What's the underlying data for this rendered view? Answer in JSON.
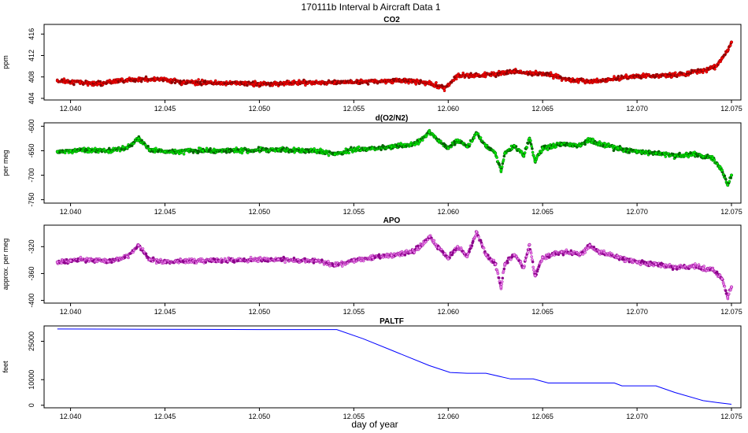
{
  "page_title": "170111b   Interval b Aircraft Data 1",
  "xlabel": "day of year",
  "chart_data": [
    {
      "type": "scatter",
      "title": "CO2",
      "ylabel": "ppm",
      "xlim": [
        12.0386,
        12.0755
      ],
      "ylim": [
        403.7,
        417.8
      ],
      "xticks": [
        "12.040",
        "12.045",
        "12.050",
        "12.055",
        "12.060",
        "12.065",
        "12.070",
        "12.075"
      ],
      "yticks": [
        "404",
        "408",
        "412",
        "416"
      ],
      "color": "#ff0000",
      "edge_color": "#8b0000",
      "series": [
        {
          "x": [
            12.0393,
            12.0405,
            12.0415,
            12.043,
            12.0445,
            12.046,
            12.048,
            12.05,
            12.052,
            12.054,
            12.056,
            12.058,
            12.059,
            12.0598,
            12.0605,
            12.0615,
            12.0625,
            12.0635,
            12.0645,
            12.0655,
            12.0665,
            12.0675,
            12.0685,
            12.0695,
            12.0705,
            12.0715,
            12.0725,
            12.0735,
            12.0742,
            12.0745,
            12.0748,
            12.075
          ],
          "y": [
            407.3,
            407.0,
            406.8,
            407.5,
            407.6,
            407.0,
            406.9,
            406.7,
            406.9,
            407.0,
            407.2,
            407.3,
            406.8,
            405.9,
            408.2,
            408.3,
            408.5,
            409.0,
            408.7,
            408.3,
            407.4,
            407.2,
            407.5,
            408.0,
            408.2,
            408.3,
            408.5,
            409.3,
            410.0,
            411.5,
            413.0,
            414.5
          ]
        }
      ]
    },
    {
      "type": "scatter",
      "title": "d(O2/N2)",
      "ylabel": "per meg",
      "xlim": [
        12.0386,
        12.0755
      ],
      "ylim": [
        -757,
        -593
      ],
      "xticks": [
        "12.040",
        "12.045",
        "12.050",
        "12.055",
        "12.060",
        "12.065",
        "12.070",
        "12.075"
      ],
      "yticks": [
        "-750",
        "-700",
        "-650",
        "-600"
      ],
      "color": "#00ee00",
      "edge_color": "#006400",
      "series": [
        {
          "x": [
            12.0393,
            12.04,
            12.041,
            12.042,
            12.043,
            12.0436,
            12.0442,
            12.045,
            12.047,
            12.049,
            12.051,
            12.053,
            12.054,
            12.055,
            12.056,
            12.057,
            12.058,
            12.0585,
            12.059,
            12.0595,
            12.06,
            12.0605,
            12.061,
            12.0615,
            12.062,
            12.0625,
            12.0628,
            12.063,
            12.0635,
            12.064,
            12.0643,
            12.0646,
            12.065,
            12.066,
            12.067,
            12.0675,
            12.068,
            12.069,
            12.07,
            12.071,
            12.072,
            12.073,
            12.0735,
            12.074,
            12.0745,
            12.0748,
            12.075
          ],
          "y": [
            -652,
            -650,
            -648,
            -651,
            -644,
            -625,
            -648,
            -652,
            -650,
            -649,
            -648,
            -650,
            -657,
            -648,
            -645,
            -642,
            -638,
            -630,
            -612,
            -630,
            -645,
            -628,
            -642,
            -615,
            -640,
            -655,
            -690,
            -655,
            -640,
            -660,
            -625,
            -672,
            -645,
            -637,
            -640,
            -628,
            -637,
            -645,
            -652,
            -655,
            -660,
            -658,
            -662,
            -665,
            -690,
            -720,
            -700
          ]
        }
      ]
    },
    {
      "type": "scatter",
      "title": "APO",
      "ylabel": "approx. per meg",
      "xlim": [
        12.0386,
        12.0755
      ],
      "ylim": [
        -404,
        -288
      ],
      "xticks": [
        "12.040",
        "12.045",
        "12.050",
        "12.055",
        "12.060",
        "12.065",
        "12.070",
        "12.075"
      ],
      "yticks": [
        "-400",
        "-360",
        "-320"
      ],
      "color": "#ee82ee",
      "edge_color": "#8b008b",
      "series": [
        {
          "x": [
            12.0393,
            12.04,
            12.041,
            12.042,
            12.043,
            12.0436,
            12.0442,
            12.045,
            12.047,
            12.049,
            12.051,
            12.053,
            12.054,
            12.055,
            12.056,
            12.057,
            12.058,
            12.0585,
            12.059,
            12.0595,
            12.06,
            12.0605,
            12.061,
            12.0615,
            12.062,
            12.0625,
            12.0628,
            12.063,
            12.0635,
            12.064,
            12.0643,
            12.0646,
            12.065,
            12.066,
            12.067,
            12.0675,
            12.068,
            12.069,
            12.07,
            12.071,
            12.072,
            12.073,
            12.0735,
            12.074,
            12.0745,
            12.0748,
            12.075
          ],
          "y": [
            -343,
            -341,
            -339,
            -342,
            -335,
            -318,
            -339,
            -343,
            -341,
            -340,
            -339,
            -341,
            -348,
            -340,
            -336,
            -333,
            -328,
            -321,
            -305,
            -322,
            -338,
            -320,
            -335,
            -298,
            -332,
            -346,
            -380,
            -346,
            -332,
            -351,
            -317,
            -363,
            -336,
            -328,
            -331,
            -318,
            -328,
            -336,
            -343,
            -346,
            -351,
            -349,
            -352,
            -354,
            -368,
            -395,
            -380
          ]
        }
      ]
    },
    {
      "type": "line",
      "title": "PALTF",
      "ylabel": "feet",
      "xlim": [
        12.0386,
        12.0755
      ],
      "ylim": [
        -1000,
        31000
      ],
      "xticks": [
        "12.040",
        "12.045",
        "12.050",
        "12.055",
        "12.060",
        "12.065",
        "12.070",
        "12.075"
      ],
      "yticks": [
        "0",
        "10000",
        "25000"
      ],
      "color": "#0000ff",
      "series": [
        {
          "x": [
            12.0393,
            12.044,
            12.05,
            12.0541,
            12.0555,
            12.057,
            12.059,
            12.0601,
            12.061,
            12.062,
            12.0633,
            12.0645,
            12.0653,
            12.066,
            12.067,
            12.068,
            12.0688,
            12.0692,
            12.071,
            12.072,
            12.0735,
            12.0743,
            12.075
          ],
          "y": [
            29800,
            29700,
            29600,
            29600,
            26000,
            21500,
            15500,
            12800,
            12500,
            12500,
            10300,
            10300,
            8700,
            8700,
            8700,
            8700,
            8700,
            7600,
            7600,
            5000,
            1800,
            1000,
            400
          ]
        }
      ]
    }
  ]
}
